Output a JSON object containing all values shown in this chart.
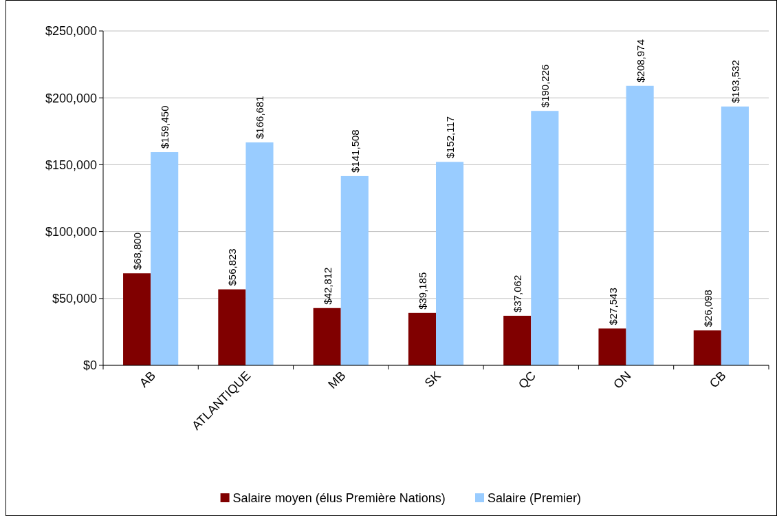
{
  "chart_data": {
    "type": "bar",
    "categories": [
      "AB",
      "ATLANTIQUE",
      "MB",
      "SK",
      "QC",
      "ON",
      "CB"
    ],
    "series": [
      {
        "name": "Salaire moyen (élus Première Nations)",
        "color": "#800000",
        "values": [
          68800,
          56823,
          42812,
          39185,
          37062,
          27543,
          26098
        ],
        "value_labels": [
          "$68,800",
          "$56,823",
          "$42,812",
          "$39,185",
          "$37,062",
          "$27,543",
          "$26,098"
        ]
      },
      {
        "name": "Salaire (Premier)",
        "color": "#99ccff",
        "values": [
          159450,
          166681,
          141508,
          152117,
          190226,
          208974,
          193532
        ],
        "value_labels": [
          "$159,450",
          "$166,681",
          "$141,508",
          "$152,117",
          "$190,226",
          "$208,974",
          "$193,532"
        ]
      }
    ],
    "ylim": [
      0,
      250000
    ],
    "yticks": [
      {
        "value": 0,
        "label": "$0"
      },
      {
        "value": 50000,
        "label": "$50,000"
      },
      {
        "value": 100000,
        "label": "$100,000"
      },
      {
        "value": 150000,
        "label": "$150,000"
      },
      {
        "value": 200000,
        "label": "$200,000"
      },
      {
        "value": 250000,
        "label": "$250,000"
      }
    ],
    "grid": "y",
    "legend": "bottom"
  }
}
